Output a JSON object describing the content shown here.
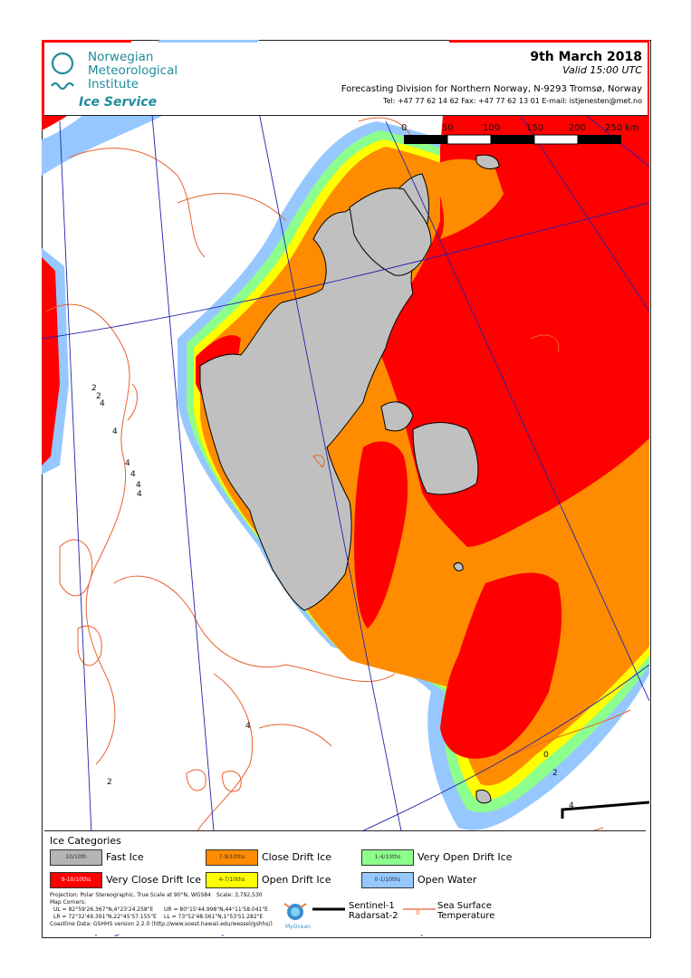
{
  "header": {
    "institute_line1": "Norwegian",
    "institute_line2": "Meteorological",
    "institute_line3": "Institute",
    "service": "Ice Service",
    "date": "9th March 2018",
    "valid": "Valid 15:00 UTC",
    "forecasting": "Forecasting Division for Northern Norway, N-9293 Tromsø, Norway",
    "contact": "Tel: +47 77 62 14 62   Fax: +47 77 62 13 01   E-mail: istjenesten@met.no"
  },
  "scale_bar": {
    "labels": [
      "0",
      "50",
      "100",
      "150",
      "200",
      "250 km"
    ]
  },
  "contour_labels": [
    "2",
    "2",
    "4",
    "4",
    "4",
    "4",
    "4",
    "4",
    "4",
    "2",
    "0",
    "2",
    "4"
  ],
  "legend": {
    "title": "Ice Categories",
    "items": [
      {
        "swatch_text": "10/10th",
        "label": "Fast Ice",
        "color": "#b4b4b4"
      },
      {
        "swatch_text": "7-9/10ths",
        "label": "Close Drift Ice",
        "color": "#ff8c00"
      },
      {
        "swatch_text": "1-4/10ths",
        "label": "Very Open Drift Ice",
        "color": "#8cff8c"
      },
      {
        "swatch_text": "9-10/10ths",
        "label": "Very Close Drift Ice",
        "color": "#ff0000"
      },
      {
        "swatch_text": "4-7/10ths",
        "label": "Open Drift Ice",
        "color": "#ffff00"
      },
      {
        "swatch_text": "0-1/10ths",
        "label": "Open Water",
        "color": "#96c8ff"
      }
    ],
    "projection": "Projection: Polar Stereographic, True Scale at 90°N, WGS84",
    "scale": "Scale: 3,792,530",
    "corners_title": "Map Corners:",
    "ul": "UL = 82°59'26.367\"N,4°23'24.258\"E",
    "ur": "UR = 80°15'44.998\"N,44°11'58.041\"E",
    "lr": "LR =  72°32'49.391\"N,22°45'57.155\"E",
    "ll": "LL = 73°52'48.561\"N,1°53'51.282\"E",
    "coastline": "Coastline Data: GSHHS version 2.2.0 (http://www.soest.hawaii.edu/wessel/gshhs/)",
    "sentinel": "Sentinel-1",
    "radarsat": "Radarsat-2",
    "sst_symbol": "0",
    "sst1": "Sea Surface",
    "sst2": "Temperature",
    "myocean": "MyOcean"
  }
}
